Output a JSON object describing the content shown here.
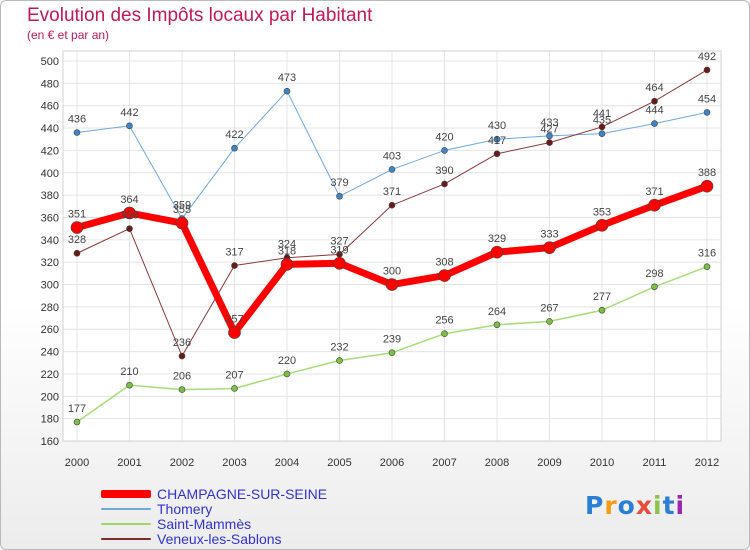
{
  "chart_data": {
    "type": "line",
    "title": "Evolution des Impôts locaux par Habitant",
    "subtitle": "(en € et par an)",
    "x": [
      "2000",
      "2001",
      "2002",
      "2003",
      "2004",
      "2005",
      "2006",
      "2007",
      "2008",
      "2009",
      "2010",
      "2011",
      "2012"
    ],
    "ylim": [
      160,
      500
    ],
    "yticks": [
      160,
      180,
      200,
      220,
      240,
      260,
      280,
      300,
      320,
      340,
      360,
      380,
      400,
      420,
      440,
      460,
      480,
      500
    ],
    "grid": true,
    "legend_position": "bottom-left",
    "series": [
      {
        "name": "CHAMPAGNE-SUR-SEINE",
        "color": "#ff0000",
        "values": [
          351,
          364,
          355,
          257,
          318,
          319,
          300,
          308,
          329,
          333,
          353,
          371,
          388
        ]
      },
      {
        "name": "Thomery",
        "color": "#6fa8dc",
        "values": [
          436,
          442,
          359,
          422,
          473,
          379,
          403,
          420,
          430,
          433,
          435,
          444,
          454
        ]
      },
      {
        "name": "Saint-Mammès",
        "color": "#9fd66a",
        "values": [
          177,
          210,
          206,
          207,
          220,
          232,
          239,
          256,
          264,
          267,
          277,
          298,
          316
        ]
      },
      {
        "name": "Veneux-les-Sablons",
        "color": "#7b2d2d",
        "values": [
          328,
          350,
          236,
          317,
          324,
          327,
          371,
          390,
          417,
          427,
          441,
          464,
          492
        ]
      }
    ]
  },
  "logo": {
    "text": "Proxiti",
    "colors": [
      "#2a7fd4",
      "#f39c12",
      "#2a7fd4",
      "#e74c3c",
      "#8bc34a",
      "#2a7fd4",
      "#9c27b0"
    ]
  }
}
